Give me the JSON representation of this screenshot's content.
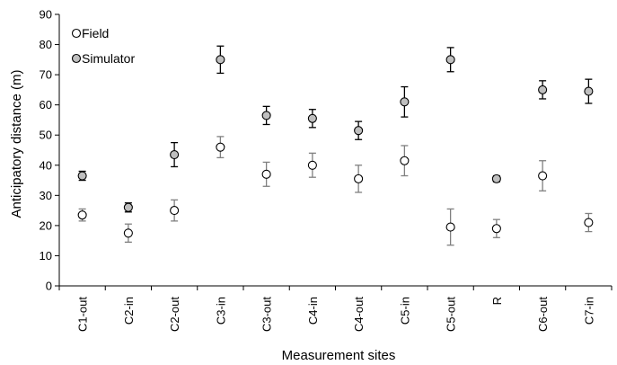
{
  "chart_data": {
    "type": "scatter",
    "title": "",
    "xlabel": "Measurement sites",
    "ylabel": "Anticipatory distance (m)",
    "ylim": [
      0,
      90
    ],
    "yticks": [
      0,
      10,
      20,
      30,
      40,
      50,
      60,
      70,
      80,
      90
    ],
    "grid": false,
    "legend_position": "top-left",
    "categories": [
      "C1-out",
      "C2-in",
      "C2-out",
      "C3-in",
      "C3-out",
      "C4-in",
      "C4-out",
      "C5-in",
      "C5-out",
      "R",
      "C6-out",
      "C7-in"
    ],
    "series": [
      {
        "name": "Field",
        "marker": "open-circle",
        "color": "#ffffff",
        "errorbar_color": "#808080",
        "values": [
          23.5,
          17.5,
          25,
          46,
          37,
          40,
          35.5,
          41.5,
          19.5,
          19,
          36.5,
          21
        ],
        "error": [
          2,
          3,
          3.5,
          3.5,
          4,
          4,
          4.5,
          5,
          6,
          3,
          5,
          3
        ]
      },
      {
        "name": "Simulator",
        "marker": "filled-circle",
        "color": "#bfbfbf",
        "errorbar_color": "#000000",
        "values": [
          36.5,
          26,
          43.5,
          75,
          56.5,
          55.5,
          51.5,
          61,
          75,
          35.5,
          65,
          64.5
        ],
        "error": [
          1.5,
          1.5,
          4,
          4.5,
          3,
          3,
          3,
          5,
          4,
          1,
          3,
          4
        ]
      }
    ]
  }
}
